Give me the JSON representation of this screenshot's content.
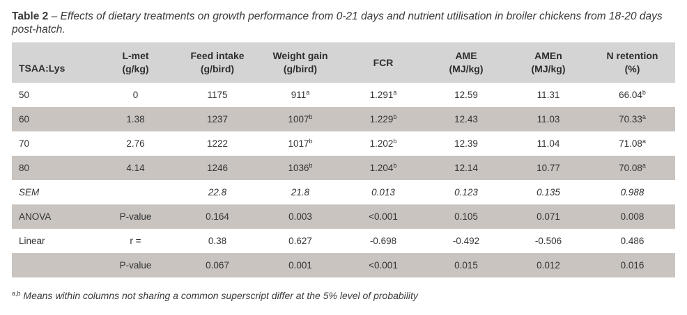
{
  "caption": {
    "label": "Table 2",
    "dash": " – ",
    "text": "Effects of dietary treatments on growth performance from 0-21 days and nutrient utilisation in broiler chickens from 18-20 days post-hatch."
  },
  "table": {
    "headers": [
      {
        "line1": "TSAA:Lys",
        "line2": ""
      },
      {
        "line1": "L-met",
        "line2": "(g/kg)"
      },
      {
        "line1": "Feed intake",
        "line2": "(g/bird)"
      },
      {
        "line1": "Weight gain",
        "line2": "(g/bird)"
      },
      {
        "line1": "FCR",
        "line2": ""
      },
      {
        "line1": "AME",
        "line2": "(MJ/kg)"
      },
      {
        "line1": "AMEn",
        "line2": "(MJ/kg)"
      },
      {
        "line1": "N retention",
        "line2": "(%)"
      }
    ],
    "rows": [
      {
        "style": "plain",
        "cells": [
          {
            "v": "50"
          },
          {
            "v": "0"
          },
          {
            "v": "1175"
          },
          {
            "v": "911",
            "sup": "a"
          },
          {
            "v": "1.291",
            "sup": "a"
          },
          {
            "v": "12.59"
          },
          {
            "v": "11.31"
          },
          {
            "v": "66.04",
            "sup": "b"
          }
        ]
      },
      {
        "style": "shade",
        "cells": [
          {
            "v": "60"
          },
          {
            "v": "1.38"
          },
          {
            "v": "1237"
          },
          {
            "v": "1007",
            "sup": "b"
          },
          {
            "v": "1.229",
            "sup": "b"
          },
          {
            "v": "12.43"
          },
          {
            "v": "11.03"
          },
          {
            "v": "70.33",
            "sup": "a"
          }
        ]
      },
      {
        "style": "plain",
        "cells": [
          {
            "v": "70"
          },
          {
            "v": "2.76"
          },
          {
            "v": "1222"
          },
          {
            "v": "1017",
            "sup": "b"
          },
          {
            "v": "1.202",
            "sup": "b"
          },
          {
            "v": "12.39"
          },
          {
            "v": "11.04"
          },
          {
            "v": "71.08",
            "sup": "a"
          }
        ]
      },
      {
        "style": "shade",
        "cells": [
          {
            "v": "80"
          },
          {
            "v": "4.14"
          },
          {
            "v": "1246"
          },
          {
            "v": "1036",
            "sup": "b"
          },
          {
            "v": "1.204",
            "sup": "b"
          },
          {
            "v": "12.14"
          },
          {
            "v": "10.77"
          },
          {
            "v": "70.08",
            "sup": "a"
          }
        ]
      },
      {
        "style": "plain sem",
        "cells": [
          {
            "v": "SEM"
          },
          {
            "v": ""
          },
          {
            "v": "22.8"
          },
          {
            "v": "21.8"
          },
          {
            "v": "0.013"
          },
          {
            "v": "0.123"
          },
          {
            "v": "0.135"
          },
          {
            "v": "0.988"
          }
        ]
      },
      {
        "style": "shade",
        "cells": [
          {
            "v": "ANOVA"
          },
          {
            "v": "P-value"
          },
          {
            "v": "0.164"
          },
          {
            "v": "0.003"
          },
          {
            "v": "<0.001"
          },
          {
            "v": "0.105"
          },
          {
            "v": "0.071"
          },
          {
            "v": "0.008"
          }
        ]
      },
      {
        "style": "plain",
        "cells": [
          {
            "v": "Linear"
          },
          {
            "v": "r ="
          },
          {
            "v": "0.38"
          },
          {
            "v": "0.627"
          },
          {
            "v": "-0.698"
          },
          {
            "v": "-0.492"
          },
          {
            "v": "-0.506"
          },
          {
            "v": "0.486"
          }
        ]
      },
      {
        "style": "shade",
        "cells": [
          {
            "v": ""
          },
          {
            "v": "P-value"
          },
          {
            "v": "0.067"
          },
          {
            "v": "0.001"
          },
          {
            "v": "<0.001"
          },
          {
            "v": "0.015"
          },
          {
            "v": "0.012"
          },
          {
            "v": "0.016"
          }
        ]
      }
    ]
  },
  "footnote": {
    "sup": "a,b",
    "text": " Means within columns not sharing a common superscript differ at the 5% level of probability"
  },
  "colors": {
    "header_bg": "#d4d4d4",
    "shade_row_bg": "#c9c4c0",
    "text": "#333333"
  }
}
